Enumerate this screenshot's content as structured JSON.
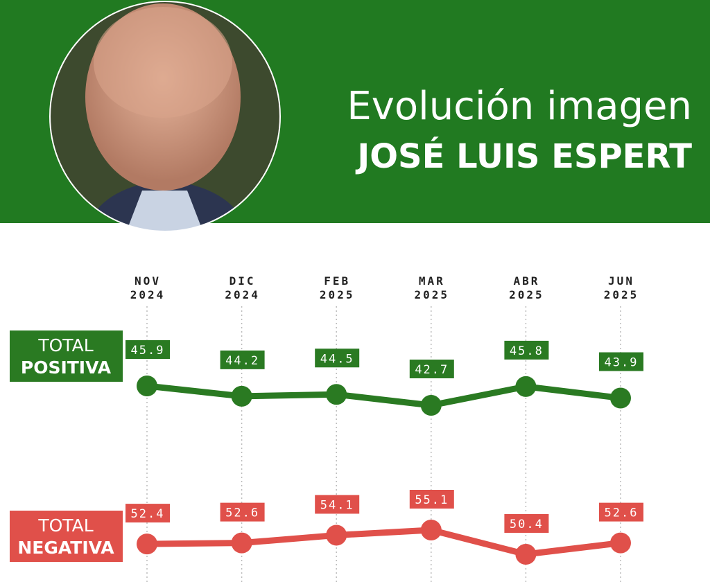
{
  "chart_data": {
    "type": "line",
    "title": "Evolución imagen",
    "subtitle": "JOSÉ LUIS ESPERT",
    "categories": [
      "NOV 2024",
      "DIC 2024",
      "FEB 2025",
      "MAR 2025",
      "ABR 2025",
      "JUN 2025"
    ],
    "series": [
      {
        "name": "TOTAL POSITIVA",
        "color": "#2a7a22",
        "values": [
          45.9,
          44.2,
          44.5,
          42.7,
          45.8,
          43.9
        ]
      },
      {
        "name": "TOTAL NEGATIVA",
        "color": "#e0504a",
        "values": [
          52.4,
          52.6,
          54.1,
          55.1,
          50.4,
          52.6
        ]
      }
    ],
    "grid": true
  }
}
